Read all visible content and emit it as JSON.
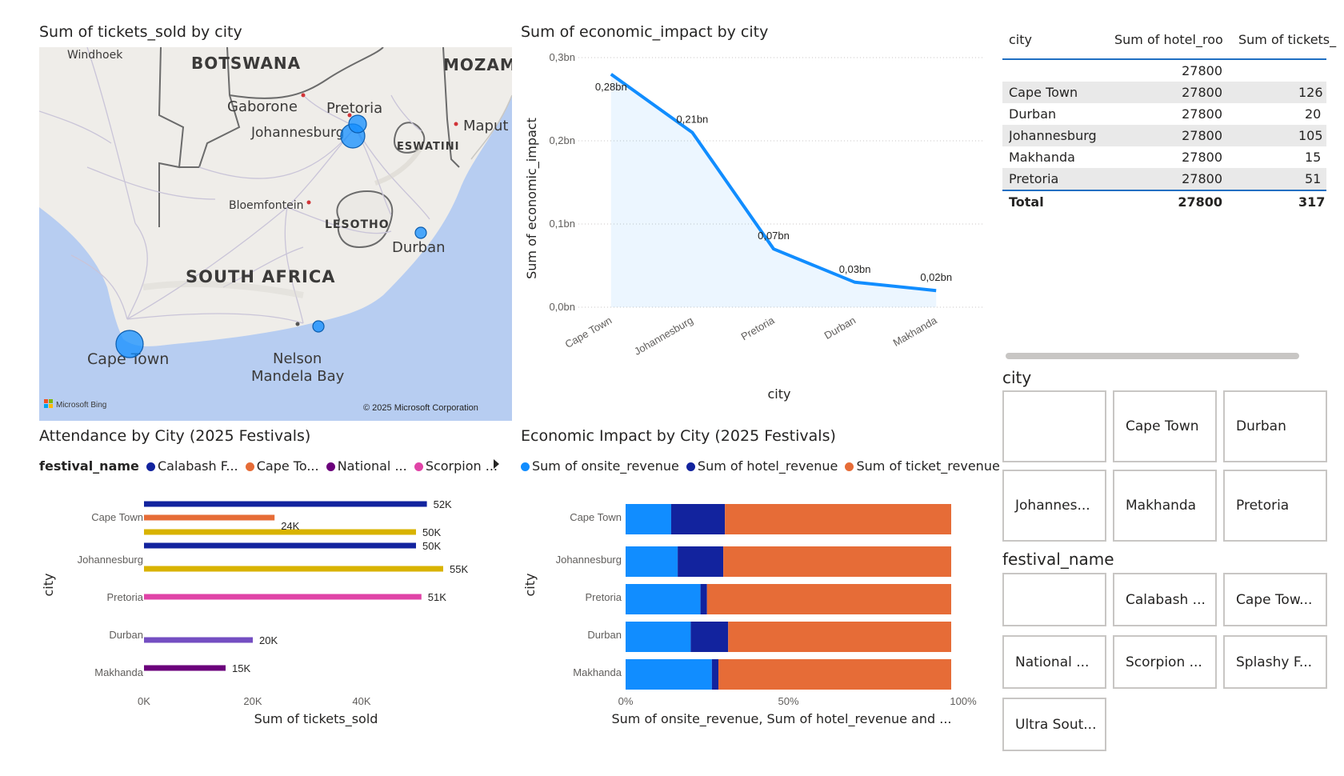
{
  "map_visual": {
    "title": "Sum of tickets_sold by city",
    "labels": {
      "windhoek": "Windhoek",
      "botswana": "BOTSWANA",
      "mozambique": "MOZAM",
      "gaborone": "Gaborone",
      "pretoria": "Pretoria",
      "johannesburg": "Johannesburg",
      "maputo": "Maput",
      "eswatini": "ESWATINI",
      "bloemfontein": "Bloemfontein",
      "lesotho": "LESOTHO",
      "durban": "Durban",
      "south_africa": "SOUTH AFRICA",
      "cape_town": "Cape Town",
      "nelson": "Nelson",
      "mandela_bay": "Mandela Bay"
    },
    "bing_logo": "Microsoft Bing",
    "copyright": "© 2025 Microsoft Corporation",
    "bubble_color": "#118dff"
  },
  "line_chart": {
    "title": "Sum of economic_impact by city",
    "ylabel": "Sum of economic_impact",
    "xlabel": "city",
    "y_ticks": [
      "0,3bn",
      "0,2bn",
      "0,1bn",
      "0,0bn"
    ],
    "color": "#118dff",
    "chart_data": {
      "type": "area",
      "categories": [
        "Cape Town",
        "Johannesburg",
        "Pretoria",
        "Durban",
        "Makhanda"
      ],
      "values": [
        0.28,
        0.21,
        0.07,
        0.03,
        0.02
      ],
      "value_labels": [
        "0,28bn",
        "0,21bn",
        "0,07bn",
        "0,03bn",
        "0,02bn"
      ],
      "unit": "bn",
      "ylim": [
        0,
        0.3
      ],
      "title": "Sum of economic_impact by city",
      "xlabel": "city",
      "ylabel": "Sum of economic_impact"
    }
  },
  "table": {
    "headers": [
      "city",
      "Sum of hotel_rooms",
      "Sum of tickets_"
    ],
    "rows": [
      [
        "",
        "27800",
        ""
      ],
      [
        "Cape Town",
        "27800",
        "126"
      ],
      [
        "Durban",
        "27800",
        "20"
      ],
      [
        "Johannesburg",
        "27800",
        "105"
      ],
      [
        "Makhanda",
        "27800",
        "15"
      ],
      [
        "Pretoria",
        "27800",
        "51"
      ]
    ],
    "total": [
      "Total",
      "27800",
      "317"
    ],
    "accent": "#1f6fc2"
  },
  "attendance_chart": {
    "title": "Attendance by City (2025 Festivals)",
    "legend_title": "festival_name",
    "legend": [
      {
        "label": "Calabash F...",
        "color": "#12239e"
      },
      {
        "label": "Cape To...",
        "color": "#e66c37"
      },
      {
        "label": "National ...",
        "color": "#6b007b"
      },
      {
        "label": "Scorpion ...",
        "color": "#e044a7"
      }
    ],
    "ylabel": "city",
    "xlabel": "Sum of tickets_sold",
    "x_ticks": [
      "0K",
      "20K",
      "40K"
    ],
    "chart_data": {
      "type": "bar",
      "orientation": "horizontal",
      "categories": [
        "Cape Town",
        "Johannesburg",
        "Pretoria",
        "Durban",
        "Makhanda"
      ],
      "xlim": [
        0,
        60000
      ],
      "x_ticks": [
        0,
        20000,
        40000
      ],
      "bars": [
        {
          "category": "Cape Town",
          "value": 52000,
          "label": "52K",
          "color": "#12239e"
        },
        {
          "category": "Cape Town",
          "value": 24000,
          "label": "24K",
          "color": "#e66c37"
        },
        {
          "category": "Cape Town",
          "value": 50000,
          "label": "50K",
          "color": "#d9b300"
        },
        {
          "category": "Johannesburg",
          "value": 50000,
          "label": "50K",
          "color": "#12239e"
        },
        {
          "category": "Johannesburg",
          "value": 55000,
          "label": "55K",
          "color": "#d9b300"
        },
        {
          "category": "Pretoria",
          "value": 51000,
          "label": "51K",
          "color": "#e044a7"
        },
        {
          "category": "Durban",
          "value": 20000,
          "label": "20K",
          "color": "#744ec2"
        },
        {
          "category": "Makhanda",
          "value": 15000,
          "label": "15K",
          "color": "#6b007b"
        }
      ]
    }
  },
  "economic_chart": {
    "title": "Economic Impact by City (2025 Festivals)",
    "legend": [
      {
        "label": "Sum of onsite_revenue",
        "color": "#118dff"
      },
      {
        "label": "Sum of hotel_revenue",
        "color": "#12239e"
      },
      {
        "label": "Sum of ticket_revenue",
        "color": "#e66c37"
      }
    ],
    "ylabel": "city",
    "xlabel": "Sum of onsite_revenue, Sum of hotel_revenue and ...",
    "x_ticks": [
      "0%",
      "50%",
      "100%"
    ],
    "chart_data": {
      "type": "bar",
      "stacked": "100%",
      "categories": [
        "Cape Town",
        "Johannesburg",
        "Pretoria",
        "Durban",
        "Makhanda"
      ],
      "series": [
        {
          "name": "Sum of onsite_revenue",
          "values": [
            14,
            16,
            23,
            20,
            26.5
          ]
        },
        {
          "name": "Sum of hotel_revenue",
          "values": [
            16.5,
            14,
            2,
            11.5,
            2
          ]
        },
        {
          "name": "Sum of ticket_revenue",
          "values": [
            69.5,
            70,
            75,
            68.5,
            71.5
          ]
        }
      ],
      "xlim": [
        0,
        100
      ]
    }
  },
  "city_slicer": {
    "label": "city",
    "tiles": [
      "",
      "Cape Town",
      "Durban",
      "Johannes...",
      "Makhanda",
      "Pretoria"
    ]
  },
  "festival_slicer": {
    "label": "festival_name",
    "tiles": [
      "",
      "Calabash ...",
      "Cape Tow...",
      "National ...",
      "Scorpion ...",
      "Splashy F...",
      "Ultra Sout..."
    ]
  }
}
